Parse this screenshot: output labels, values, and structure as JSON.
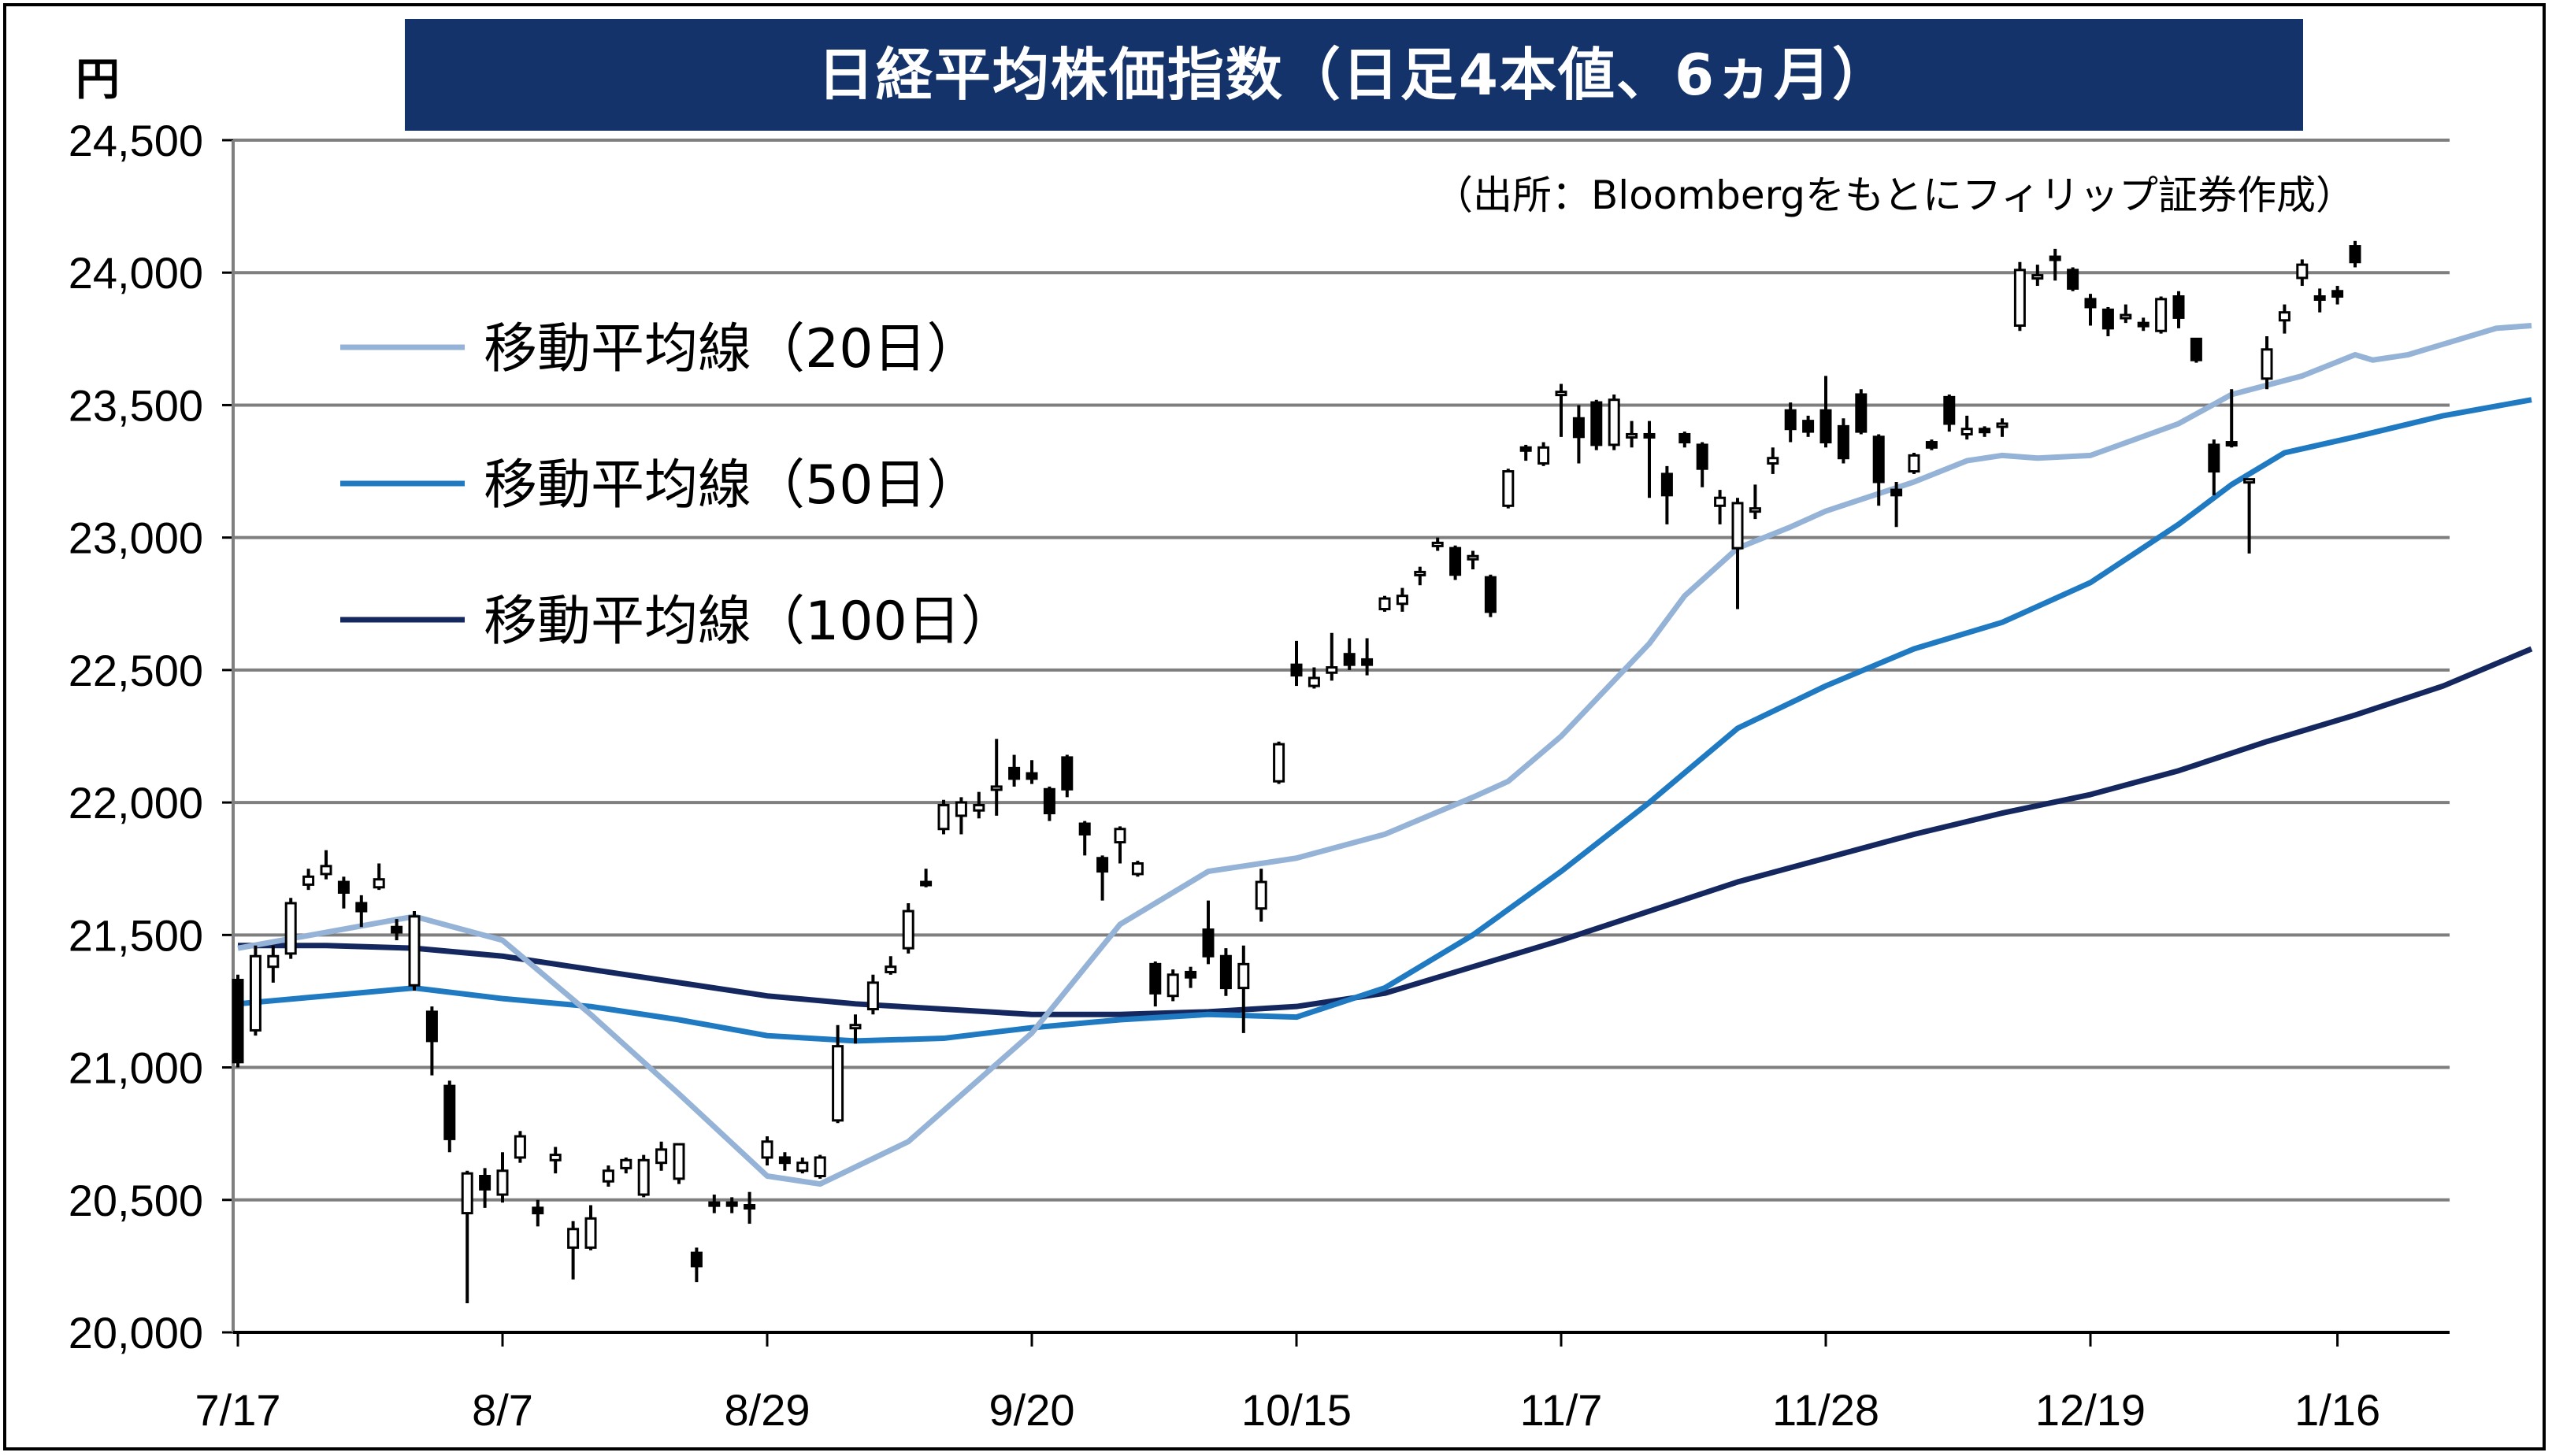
{
  "title": "日経平均株価指数（日足4本値、6ヵ月）",
  "unit": "円",
  "source": "（出所：Bloombergをもとにフィリップ証券作成）",
  "colors": {
    "ma20": "#95b3d7",
    "ma50": "#1f7ac2",
    "ma100": "#14285f",
    "grid": "#7f7f7f",
    "title_bg": "#14336b"
  },
  "chart_data": {
    "type": "candlestick",
    "ylim": [
      20000,
      24500
    ],
    "yticks": [
      "20,000",
      "20,500",
      "21,000",
      "21,500",
      "22,000",
      "22,500",
      "23,000",
      "23,500",
      "24,000",
      "24,500"
    ],
    "ytick_values": [
      20000,
      20500,
      21000,
      21500,
      22000,
      22500,
      23000,
      23500,
      24000,
      24500
    ],
    "xticks": [
      "7/17",
      "8/7",
      "8/29",
      "9/20",
      "10/15",
      "11/7",
      "11/28",
      "12/19",
      "1/16"
    ],
    "xtick_index": [
      0,
      15,
      30,
      45,
      60,
      75,
      90,
      105,
      119
    ],
    "n_days": 121,
    "legend": [
      {
        "label": "移動平均線（20日）",
        "color": "#95b3d7"
      },
      {
        "label": "移動平均線（50日）",
        "color": "#1f7ac2"
      },
      {
        "label": "移動平均線（100日）",
        "color": "#14285f"
      }
    ],
    "candles": [
      [
        21330,
        21020,
        21350,
        21000
      ],
      [
        21140,
        21420,
        21460,
        21120
      ],
      [
        21380,
        21420,
        21460,
        21320
      ],
      [
        21430,
        21620,
        21640,
        21410
      ],
      [
        21690,
        21720,
        21750,
        21670
      ],
      [
        21730,
        21760,
        21820,
        21710
      ],
      [
        21700,
        21660,
        21720,
        21600
      ],
      [
        21620,
        21590,
        21650,
        21530
      ],
      [
        21680,
        21710,
        21770,
        21670
      ],
      [
        21530,
        21510,
        21560,
        21480
      ],
      [
        21310,
        21570,
        21590,
        21290
      ],
      [
        21210,
        21100,
        21230,
        20970
      ],
      [
        20930,
        20730,
        20950,
        20680
      ],
      [
        20450,
        20600,
        20610,
        20110
      ],
      [
        20590,
        20540,
        20620,
        20470
      ],
      [
        20520,
        20610,
        20680,
        20490
      ],
      [
        20660,
        20740,
        20760,
        20640
      ],
      [
        20470,
        20450,
        20500,
        20400
      ],
      [
        20650,
        20670,
        20700,
        20600
      ],
      [
        20320,
        20390,
        20420,
        20200
      ],
      [
        20320,
        20430,
        20480,
        20310
      ],
      [
        20570,
        20610,
        20630,
        20550
      ],
      [
        20620,
        20650,
        20660,
        20600
      ],
      [
        20520,
        20650,
        20670,
        20510
      ],
      [
        20640,
        20690,
        20720,
        20610
      ],
      [
        20580,
        20710,
        20710,
        20560
      ],
      [
        20300,
        20250,
        20320,
        20190
      ],
      [
        20490,
        20480,
        20520,
        20450
      ],
      [
        20490,
        20480,
        20510,
        20450
      ],
      [
        20480,
        20470,
        20530,
        20410
      ],
      [
        20660,
        20720,
        20740,
        20630
      ],
      [
        20660,
        20640,
        20680,
        20610
      ],
      [
        20610,
        20640,
        20660,
        20600
      ],
      [
        20590,
        20660,
        20670,
        20580
      ],
      [
        20800,
        21080,
        21160,
        20790
      ],
      [
        21150,
        21160,
        21200,
        21090
      ],
      [
        21220,
        21320,
        21350,
        21200
      ],
      [
        21360,
        21380,
        21420,
        21350
      ],
      [
        21450,
        21590,
        21620,
        21430
      ],
      [
        21700,
        21690,
        21750,
        21680
      ],
      [
        21900,
        21990,
        22010,
        21880
      ],
      [
        21950,
        22000,
        22020,
        21880
      ],
      [
        21970,
        21990,
        22040,
        21940
      ],
      [
        22050,
        22060,
        22240,
        21950
      ],
      [
        22130,
        22090,
        22180,
        22060
      ],
      [
        22110,
        22090,
        22160,
        22070
      ],
      [
        22050,
        21960,
        22060,
        21930
      ],
      [
        22170,
        22050,
        22180,
        22020
      ],
      [
        21920,
        21880,
        21930,
        21800
      ],
      [
        21790,
        21740,
        21800,
        21630
      ],
      [
        21850,
        21900,
        21910,
        21770
      ],
      [
        21730,
        21770,
        21780,
        21720
      ],
      [
        21390,
        21280,
        21400,
        21230
      ],
      [
        21270,
        21350,
        21370,
        21250
      ],
      [
        21360,
        21340,
        21380,
        21300
      ],
      [
        21520,
        21420,
        21630,
        21390
      ],
      [
        21420,
        21300,
        21450,
        21270
      ],
      [
        21300,
        21390,
        21460,
        21130
      ],
      [
        21600,
        21700,
        21750,
        21550
      ],
      [
        22080,
        22220,
        22230,
        22070
      ],
      [
        22520,
        22480,
        22610,
        22440
      ],
      [
        22440,
        22470,
        22510,
        22430
      ],
      [
        22490,
        22510,
        22640,
        22460
      ],
      [
        22560,
        22520,
        22620,
        22500
      ],
      [
        22540,
        22520,
        22620,
        22480
      ],
      [
        22730,
        22770,
        22780,
        22720
      ],
      [
        22750,
        22780,
        22810,
        22720
      ],
      [
        22860,
        22870,
        22890,
        22820
      ],
      [
        22970,
        22980,
        23000,
        22950
      ],
      [
        22960,
        22860,
        22970,
        22840
      ],
      [
        22920,
        22930,
        22950,
        22880
      ],
      [
        22850,
        22720,
        22860,
        22700
      ],
      [
        23120,
        23250,
        23260,
        23110
      ],
      [
        23340,
        23330,
        23350,
        23290
      ],
      [
        23280,
        23340,
        23360,
        23270
      ],
      [
        23540,
        23550,
        23580,
        23380
      ],
      [
        23450,
        23380,
        23500,
        23280
      ],
      [
        23510,
        23350,
        23520,
        23330
      ],
      [
        23350,
        23520,
        23540,
        23330
      ],
      [
        23390,
        23390,
        23440,
        23340
      ],
      [
        23390,
        23380,
        23440,
        23150
      ],
      [
        23240,
        23160,
        23270,
        23050
      ],
      [
        23390,
        23360,
        23400,
        23340
      ],
      [
        23350,
        23260,
        23360,
        23190
      ],
      [
        23120,
        23150,
        23180,
        23050
      ],
      [
        22960,
        23130,
        23150,
        22730
      ],
      [
        23110,
        23110,
        23200,
        23070
      ],
      [
        23280,
        23300,
        23340,
        23240
      ],
      [
        23480,
        23410,
        23510,
        23360
      ],
      [
        23440,
        23400,
        23460,
        23380
      ],
      [
        23480,
        23360,
        23610,
        23340
      ],
      [
        23420,
        23300,
        23450,
        23280
      ],
      [
        23540,
        23400,
        23560,
        23390
      ],
      [
        23380,
        23210,
        23390,
        23120
      ],
      [
        23180,
        23160,
        23210,
        23040
      ],
      [
        23250,
        23310,
        23320,
        23240
      ],
      [
        23360,
        23340,
        23370,
        23330
      ],
      [
        23530,
        23430,
        23540,
        23400
      ],
      [
        23390,
        23410,
        23460,
        23370
      ],
      [
        23410,
        23400,
        23420,
        23380
      ],
      [
        23420,
        23430,
        23450,
        23380
      ],
      [
        23800,
        24010,
        24040,
        23780
      ],
      [
        23990,
        23990,
        24030,
        23950
      ],
      [
        24060,
        24050,
        24090,
        23970
      ],
      [
        24010,
        23940,
        24020,
        23930
      ],
      [
        23900,
        23870,
        23920,
        23800
      ],
      [
        23860,
        23790,
        23870,
        23760
      ],
      [
        23840,
        23840,
        23880,
        23810
      ],
      [
        23810,
        23800,
        23830,
        23780
      ],
      [
        23780,
        23900,
        23910,
        23770
      ],
      [
        23910,
        23830,
        23930,
        23790
      ],
      [
        23750,
        23670,
        23750,
        23660
      ],
      [
        23350,
        23250,
        23370,
        23160
      ],
      [
        23360,
        23350,
        23560,
        23340
      ],
      [
        23210,
        23220,
        23220,
        22940
      ],
      [
        23600,
        23710,
        23760,
        23560
      ],
      [
        23820,
        23850,
        23880,
        23770
      ],
      [
        23980,
        24030,
        24050,
        23950
      ],
      [
        23910,
        23900,
        23940,
        23850
      ],
      [
        23930,
        23910,
        23950,
        23880
      ],
      [
        24100,
        24040,
        24120,
        24020
      ]
    ],
    "ma20": [
      [
        0,
        21450
      ],
      [
        10,
        21570
      ],
      [
        15,
        21480
      ],
      [
        20,
        21200
      ],
      [
        25,
        20900
      ],
      [
        30,
        20590
      ],
      [
        33,
        20560
      ],
      [
        38,
        20720
      ],
      [
        45,
        21130
      ],
      [
        50,
        21540
      ],
      [
        55,
        21740
      ],
      [
        60,
        21790
      ],
      [
        65,
        21880
      ],
      [
        70,
        22020
      ],
      [
        72,
        22080
      ],
      [
        75,
        22250
      ],
      [
        80,
        22600
      ],
      [
        82,
        22780
      ],
      [
        85,
        22960
      ],
      [
        88,
        23040
      ],
      [
        90,
        23100
      ],
      [
        95,
        23210
      ],
      [
        98,
        23290
      ],
      [
        100,
        23310
      ],
      [
        102,
        23300
      ],
      [
        105,
        23310
      ],
      [
        110,
        23430
      ],
      [
        113,
        23540
      ],
      [
        117,
        23610
      ],
      [
        120,
        23690
      ],
      [
        121,
        23670
      ],
      [
        123,
        23690
      ],
      [
        125,
        23730
      ],
      [
        128,
        23790
      ],
      [
        130,
        23800
      ]
    ],
    "ma50": [
      [
        0,
        21240
      ],
      [
        5,
        21270
      ],
      [
        10,
        21300
      ],
      [
        15,
        21260
      ],
      [
        20,
        21230
      ],
      [
        25,
        21180
      ],
      [
        30,
        21120
      ],
      [
        35,
        21100
      ],
      [
        40,
        21110
      ],
      [
        45,
        21150
      ],
      [
        50,
        21180
      ],
      [
        55,
        21200
      ],
      [
        60,
        21190
      ],
      [
        65,
        21300
      ],
      [
        70,
        21500
      ],
      [
        75,
        21740
      ],
      [
        80,
        22000
      ],
      [
        85,
        22280
      ],
      [
        90,
        22440
      ],
      [
        95,
        22580
      ],
      [
        100,
        22680
      ],
      [
        105,
        22830
      ],
      [
        110,
        23050
      ],
      [
        113,
        23200
      ],
      [
        116,
        23320
      ],
      [
        120,
        23380
      ],
      [
        125,
        23460
      ],
      [
        130,
        23520
      ]
    ],
    "ma100": [
      [
        0,
        21460
      ],
      [
        5,
        21460
      ],
      [
        10,
        21450
      ],
      [
        15,
        21420
      ],
      [
        20,
        21370
      ],
      [
        25,
        21320
      ],
      [
        30,
        21270
      ],
      [
        35,
        21240
      ],
      [
        40,
        21220
      ],
      [
        45,
        21200
      ],
      [
        50,
        21200
      ],
      [
        55,
        21210
      ],
      [
        60,
        21230
      ],
      [
        65,
        21280
      ],
      [
        70,
        21380
      ],
      [
        75,
        21480
      ],
      [
        80,
        21590
      ],
      [
        85,
        21700
      ],
      [
        90,
        21790
      ],
      [
        95,
        21880
      ],
      [
        100,
        21960
      ],
      [
        105,
        22030
      ],
      [
        110,
        22120
      ],
      [
        115,
        22230
      ],
      [
        120,
        22330
      ],
      [
        125,
        22440
      ],
      [
        130,
        22580
      ]
    ]
  }
}
